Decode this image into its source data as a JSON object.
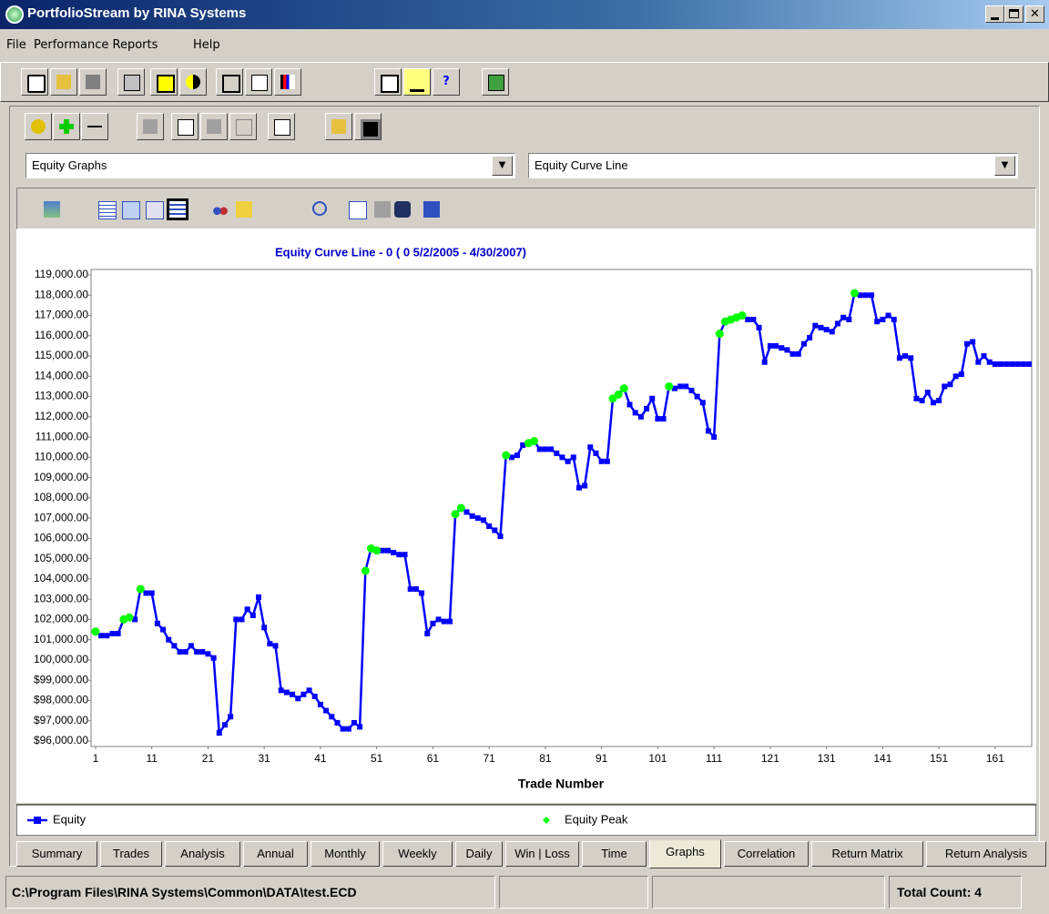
{
  "window": {
    "title": "PortfolioStream by RINA Systems"
  },
  "menu": [
    "File",
    "Performance Reports",
    "Help"
  ],
  "selectors": {
    "report": "Equity Graphs",
    "graph": "Equity Curve Line"
  },
  "tabs": {
    "items": [
      "Summary",
      "Trades",
      "Analysis",
      "Annual",
      "Monthly",
      "Weekly",
      "Daily",
      "Win | Loss",
      "Time",
      "Graphs",
      "Correlation",
      "Return Matrix",
      "Return Analysis"
    ],
    "active": "Graphs"
  },
  "status": {
    "path": "C:\\Program Files\\RINA Systems\\Common\\DATA\\test.ECD",
    "count": "Total Count: 4"
  },
  "chart_data": {
    "type": "line",
    "title": "Equity Curve Line -  0 ( 0 5/2/2005 - 4/30/2007)",
    "x_label": "Trade Number",
    "xlim": [
      0.2,
      167.5
    ],
    "ylim": [
      95730,
      119270
    ],
    "xticks": [
      1,
      11,
      21,
      31,
      41,
      51,
      61,
      71,
      81,
      91,
      101,
      111,
      121,
      131,
      141,
      151,
      161
    ],
    "yticks": [
      {
        "value": 96000,
        "label": "$96,000.00"
      },
      {
        "value": 97000,
        "label": "$97,000.00"
      },
      {
        "value": 98000,
        "label": "$98,000.00"
      },
      {
        "value": 99000,
        "label": "$99,000.00"
      },
      {
        "value": 100000,
        "label": "100,000.00"
      },
      {
        "value": 101000,
        "label": "101,000.00"
      },
      {
        "value": 102000,
        "label": "102,000.00"
      },
      {
        "value": 103000,
        "label": "103,000.00"
      },
      {
        "value": 104000,
        "label": "104,000.00"
      },
      {
        "value": 105000,
        "label": "105,000.00"
      },
      {
        "value": 106000,
        "label": "106,000.00"
      },
      {
        "value": 107000,
        "label": "107,000.00"
      },
      {
        "value": 108000,
        "label": "108,000.00"
      },
      {
        "value": 109000,
        "label": "109,000.00"
      },
      {
        "value": 110000,
        "label": "110,000.00"
      },
      {
        "value": 111000,
        "label": "111,000.00"
      },
      {
        "value": 112000,
        "label": "112,000.00"
      },
      {
        "value": 113000,
        "label": "113,000.00"
      },
      {
        "value": 114000,
        "label": "114,000.00"
      },
      {
        "value": 115000,
        "label": "115,000.00"
      },
      {
        "value": 116000,
        "label": "116,000.00"
      },
      {
        "value": 117000,
        "label": "117,000.00"
      },
      {
        "value": 118000,
        "label": "118,000.00"
      },
      {
        "value": 119000,
        "label": "119,000.00"
      }
    ],
    "grid": false,
    "series": [
      {
        "name": "Equity",
        "color": "#0000ff",
        "x": [
          1,
          2,
          3,
          4,
          5,
          6,
          7,
          8,
          9,
          10,
          11,
          12,
          13,
          14,
          15,
          16,
          17,
          18,
          19,
          20,
          21,
          22,
          23,
          24,
          25,
          26,
          27,
          28,
          29,
          30,
          31,
          32,
          33,
          34,
          35,
          36,
          37,
          38,
          39,
          40,
          41,
          42,
          43,
          44,
          45,
          46,
          47,
          48,
          49,
          50,
          51,
          52,
          53,
          54,
          55,
          56,
          57,
          58,
          59,
          60,
          61,
          62,
          63,
          64,
          65,
          66,
          67,
          68,
          69,
          70,
          71,
          72,
          73,
          74,
          75,
          76,
          77,
          78,
          79,
          80,
          81,
          82,
          83,
          84,
          85,
          86,
          87,
          88,
          89,
          90,
          91,
          92,
          93,
          94,
          95,
          96,
          97,
          98,
          99,
          100,
          101,
          102,
          103,
          104,
          105,
          106,
          107,
          108,
          109,
          110,
          111,
          112,
          113,
          114,
          115,
          116,
          117,
          118,
          119,
          120,
          121,
          122,
          123,
          124,
          125,
          126,
          127,
          128,
          129,
          130,
          131,
          132,
          133,
          134,
          135,
          136,
          137,
          138,
          139,
          140,
          141,
          142,
          143,
          144,
          145,
          146,
          147,
          148,
          149,
          150,
          151,
          152,
          153,
          154,
          155,
          156,
          157,
          158,
          159,
          160,
          161,
          162,
          163,
          164,
          165,
          166,
          167
        ],
        "values": [
          101400,
          101200,
          101200,
          101300,
          101300,
          102000,
          102100,
          102000,
          103500,
          103300,
          103300,
          101800,
          101500,
          101000,
          100700,
          100400,
          100400,
          100700,
          100400,
          100400,
          100300,
          100100,
          96400,
          96800,
          97200,
          102000,
          102000,
          102500,
          102200,
          103100,
          101600,
          100800,
          100700,
          98500,
          98400,
          98300,
          98100,
          98300,
          98500,
          98200,
          97800,
          97500,
          97200,
          96900,
          96600,
          96600,
          96900,
          96700,
          104400,
          105500,
          105400,
          105400,
          105400,
          105300,
          105200,
          105200,
          103500,
          103500,
          103300,
          101300,
          101800,
          102000,
          101900,
          101900,
          107200,
          107500,
          107300,
          107100,
          107000,
          106900,
          106600,
          106400,
          106100,
          110100,
          110000,
          110100,
          110600,
          110700,
          110800,
          110400,
          110400,
          110400,
          110200,
          110000,
          109800,
          110000,
          108500,
          108600,
          110500,
          110200,
          109800,
          109800,
          112900,
          113100,
          113400,
          112600,
          112200,
          112000,
          112400,
          112900,
          111900,
          111900,
          113500,
          113400,
          113500,
          113500,
          113300,
          113000,
          112700,
          111300,
          111000,
          116100,
          116700,
          116800,
          116900,
          117000,
          116800,
          116800,
          116400,
          114700,
          115500,
          115500,
          115400,
          115300,
          115100,
          115100,
          115600,
          115900,
          116500,
          116400,
          116300,
          116200,
          116600,
          116900,
          116800,
          118100,
          118000,
          118000,
          118000,
          116700,
          116800,
          117000,
          116800,
          114900,
          115000,
          114900,
          112900,
          112800,
          113200,
          112700,
          112800,
          113500,
          113600,
          114000,
          114100,
          115600,
          115700,
          114700,
          115000,
          114700,
          114600,
          114600,
          114600,
          114600,
          114600,
          114600,
          114600
        ]
      },
      {
        "name": "Equity Peak",
        "color": "#00ff00",
        "type": "scatter",
        "x": [
          1,
          6,
          7,
          9,
          49,
          50,
          51,
          65,
          66,
          74,
          78,
          79,
          93,
          94,
          95,
          103,
          112,
          113,
          114,
          115,
          116,
          136
        ],
        "values": [
          101400,
          102000,
          102100,
          103500,
          104400,
          105500,
          105400,
          107200,
          107500,
          110100,
          110700,
          110800,
          112900,
          113100,
          113400,
          113500,
          116100,
          116700,
          116800,
          116900,
          117000,
          118100
        ]
      }
    ]
  }
}
